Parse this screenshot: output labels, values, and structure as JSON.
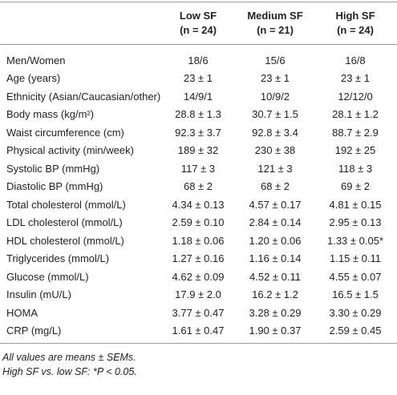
{
  "table": {
    "columns": [
      {
        "label": "Low SF",
        "count": "(n = 24)"
      },
      {
        "label": "Medium SF",
        "count": "(n = 21)"
      },
      {
        "label": "High SF",
        "count": "(n = 24)"
      }
    ],
    "rows": [
      [
        "Men/Women",
        "18/6",
        "15/6",
        "16/8"
      ],
      [
        "Age (years)",
        "23 ± 1",
        "23 ± 1",
        "23 ± 1"
      ],
      [
        "Ethnicity (Asian/Caucasian/other)",
        "14/9/1",
        "10/9/2",
        "12/12/0"
      ],
      [
        "Body mass (kg/m²)",
        "28.8 ± 1.3",
        "30.7 ± 1.5",
        "28.1 ± 1.2"
      ],
      [
        "Waist circumference (cm)",
        "92.3 ± 3.7",
        "92.8 ± 3.4",
        "88.7 ± 2.9"
      ],
      [
        "Physical activity (min/week)",
        "189 ± 32",
        "230 ± 38",
        "192 ± 25"
      ],
      [
        "Systolic BP (mmHg)",
        "117 ± 3",
        "121 ± 3",
        "118 ± 3"
      ],
      [
        "Diastolic BP (mmHg)",
        "68 ± 2",
        "68 ± 2",
        "69 ± 2"
      ],
      [
        "Total cholesterol (mmol/L)",
        "4.34 ± 0.13",
        "4.57 ± 0.17",
        "4.81 ± 0.15"
      ],
      [
        "LDL cholesterol (mmol/L)",
        "2.59 ± 0.10",
        "2.84 ± 0.14",
        "2.95 ± 0.13"
      ],
      [
        "HDL cholesterol (mmol/L)",
        "1.18 ± 0.06",
        "1.20 ± 0.06",
        "1.33 ± 0.05*"
      ],
      [
        "Triglycerides (mmol/L)",
        "1.27 ± 0.16",
        "1.16 ± 0.14",
        "1.15 ± 0.11"
      ],
      [
        "Glucose (mmol/L)",
        "4.62 ± 0.09",
        "4.52 ± 0.11",
        "4.55 ± 0.07"
      ],
      [
        "Insulin (mU/L)",
        "17.9 ± 2.0",
        "16.2 ± 1.2",
        "16.5 ± 1.5"
      ],
      [
        "HOMA",
        "3.77 ± 0.47",
        "3.28 ± 0.29",
        "3.30 ± 0.29"
      ],
      [
        "CRP (mg/L)",
        "1.61 ± 0.47",
        "1.90 ± 0.37",
        "2.59 ± 0.45"
      ]
    ]
  },
  "footnotes": [
    "All values are means ± SEMs.",
    "High SF vs. low SF: *P < 0.05."
  ]
}
